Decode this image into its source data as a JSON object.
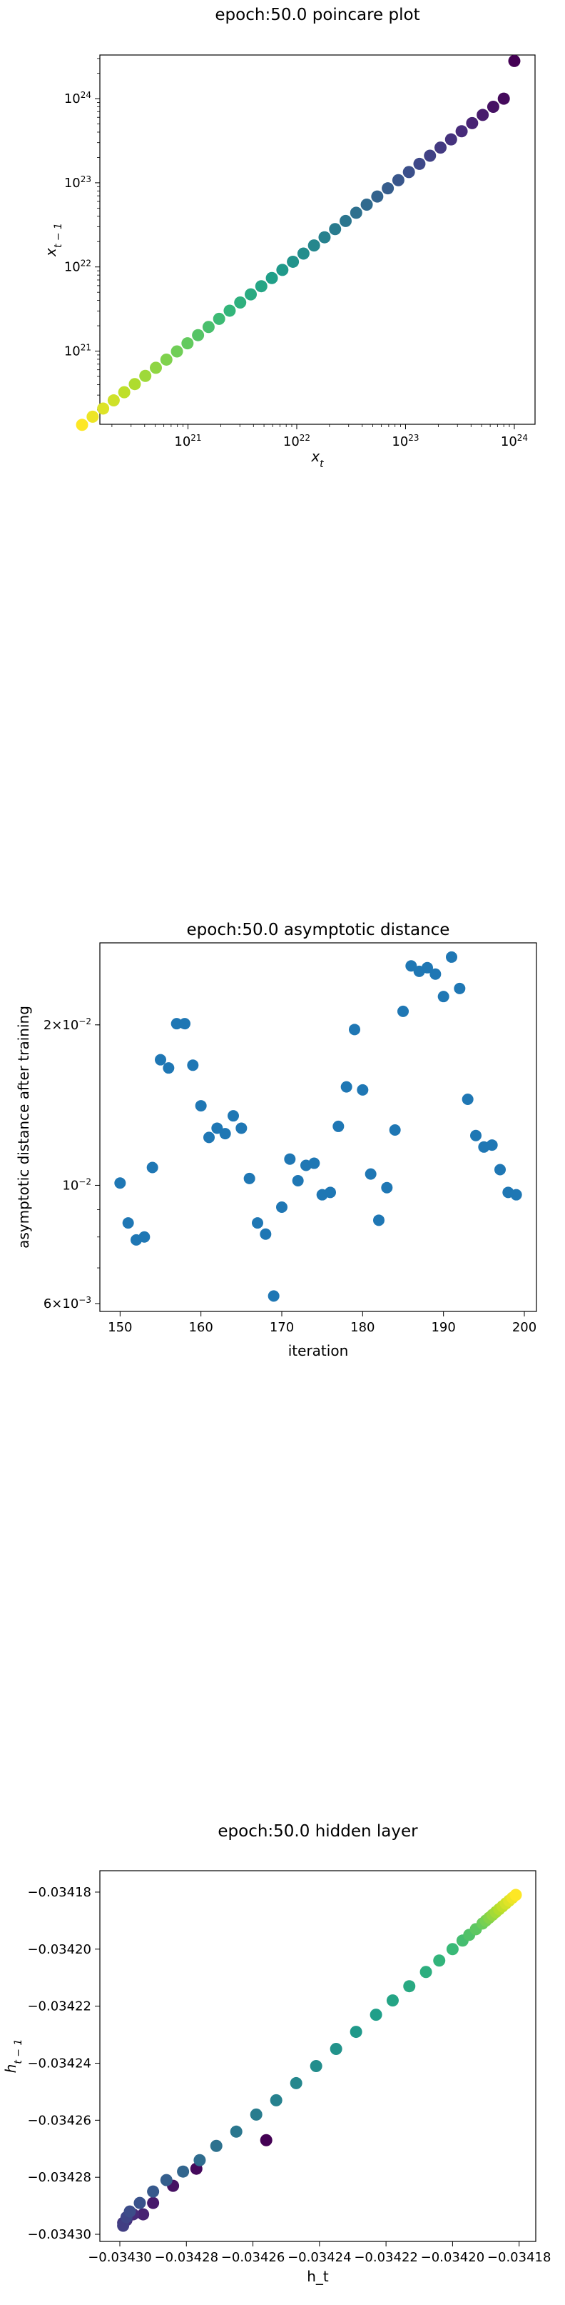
{
  "colors": {
    "axis": "#000000",
    "scatter": "#1f77b4",
    "viridis": [
      "#440154",
      "#482878",
      "#3e4989",
      "#31688e",
      "#26828e",
      "#1f9e89",
      "#35b779",
      "#6ece58",
      "#b5de2b",
      "#fde725"
    ]
  },
  "chart_data": [
    {
      "type": "scatter",
      "title": "epoch:50.0 poincare plot",
      "xlabel": "x_t",
      "ylabel": "x_{t-1}",
      "xscale": "log",
      "yscale": "log",
      "xlim": [
        1.55e+20,
        1.55e+24
      ],
      "ylim": [
        1.35e+20,
        3.3e+24
      ],
      "xticks": [
        {
          "v": 1e+21,
          "e": "21"
        },
        {
          "v": 1e+22,
          "e": "22"
        },
        {
          "v": 1e+23,
          "e": "23"
        },
        {
          "v": 1e+24,
          "e": "24"
        }
      ],
      "yticks": [
        {
          "v": 1e+21,
          "e": "21"
        },
        {
          "v": 1e+22,
          "e": "22"
        },
        {
          "v": 1e+23,
          "e": "23"
        },
        {
          "v": 1e+24,
          "e": "24"
        }
      ],
      "tick_base": "10",
      "colormap": "viridis",
      "grid": false,
      "x_first": 1e+24,
      "ratio": 0.8,
      "n": 42,
      "y_first": 2.8e+24
    },
    {
      "type": "scatter",
      "title": "epoch:50.0 asymptotic distance",
      "xlabel": "iteration",
      "ylabel": "asymptotic distance after training",
      "yscale": "log",
      "xlim": [
        147.5,
        201.5
      ],
      "ylim": [
        0.0058,
        0.0285
      ],
      "xticks": [
        150,
        160,
        170,
        180,
        190,
        200
      ],
      "yticks": [
        {
          "v": 0.006,
          "m": "6",
          "e": "-3"
        },
        {
          "v": 0.01,
          "m": "10",
          "e": "-2"
        },
        {
          "v": 0.02,
          "m": "2",
          "e": "-2"
        }
      ],
      "tick_times": "×",
      "grid": false,
      "x": [
        150,
        151,
        152,
        153,
        154,
        155,
        156,
        157,
        158,
        159,
        160,
        161,
        162,
        163,
        164,
        165,
        166,
        167,
        168,
        169,
        170,
        171,
        172,
        173,
        174,
        175,
        176,
        177,
        178,
        179,
        180,
        181,
        182,
        183,
        184,
        185,
        186,
        187,
        188,
        189,
        190,
        191,
        192,
        193,
        194,
        195,
        196,
        197,
        198,
        199
      ],
      "y": [
        0.0101,
        0.0085,
        0.0079,
        0.008,
        0.0108,
        0.0172,
        0.0166,
        0.0201,
        0.0201,
        0.0168,
        0.0141,
        0.0123,
        0.0128,
        0.0125,
        0.0135,
        0.0128,
        0.0103,
        0.0085,
        0.0081,
        0.0062,
        0.0091,
        0.0112,
        0.0102,
        0.0109,
        0.011,
        0.0096,
        0.0097,
        0.0129,
        0.0153,
        0.0196,
        0.0151,
        0.0105,
        0.0086,
        0.0099,
        0.0127,
        0.0212,
        0.0258,
        0.0252,
        0.0256,
        0.0249,
        0.0226,
        0.0268,
        0.0234,
        0.0145,
        0.0124,
        0.0118,
        0.0119,
        0.0107,
        0.0097,
        0.0096
      ]
    },
    {
      "type": "scatter",
      "title": "epoch:50.0 hidden layer",
      "xlabel": "h_t",
      "ylabel": "h_{t-1}",
      "xlim": [
        -0.034306,
        -0.034175
      ],
      "ylim": [
        -0.0343025,
        -0.0341725
      ],
      "xticks": [
        -0.0343,
        -0.03428,
        -0.03426,
        -0.03424,
        -0.03422,
        -0.0342,
        -0.03418
      ],
      "xtick_labels": [
        "−0.03430",
        "−0.03428",
        "−0.03426",
        "−0.03424",
        "−0.03422",
        "−0.03420",
        "−0.03418"
      ],
      "yticks": [
        -0.0343,
        -0.03428,
        -0.03426,
        -0.03424,
        -0.03422,
        -0.0342,
        -0.03418
      ],
      "ytick_labels": [
        "−0.03430",
        "−0.03428",
        "−0.03426",
        "−0.03424",
        "−0.03422",
        "−0.03420",
        "−0.03418"
      ],
      "colormap": "viridis",
      "grid": false,
      "points": [
        [
          -0.034256,
          -0.034267
        ],
        [
          -0.034277,
          -0.034277
        ],
        [
          -0.034284,
          -0.034283
        ],
        [
          -0.03429,
          -0.034289
        ],
        [
          -0.034293,
          -0.034293
        ],
        [
          -0.034296,
          -0.034293
        ],
        [
          -0.034298,
          -0.034295
        ],
        [
          -0.034299,
          -0.034296
        ],
        [
          -0.034299,
          -0.034297
        ],
        [
          -0.034298,
          -0.034294
        ],
        [
          -0.034297,
          -0.034292
        ],
        [
          -0.034294,
          -0.034289
        ],
        [
          -0.03429,
          -0.034285
        ],
        [
          -0.034286,
          -0.034281
        ],
        [
          -0.034281,
          -0.034278
        ],
        [
          -0.034276,
          -0.034274
        ],
        [
          -0.034271,
          -0.034269
        ],
        [
          -0.034265,
          -0.034264
        ],
        [
          -0.034259,
          -0.034258
        ],
        [
          -0.034253,
          -0.034253
        ],
        [
          -0.034247,
          -0.034247
        ],
        [
          -0.034241,
          -0.034241
        ],
        [
          -0.034235,
          -0.034235
        ],
        [
          -0.034229,
          -0.034229
        ],
        [
          -0.034223,
          -0.034223
        ],
        [
          -0.034218,
          -0.034218
        ],
        [
          -0.034213,
          -0.034213
        ],
        [
          -0.034208,
          -0.034208
        ],
        [
          -0.034204,
          -0.034204
        ],
        [
          -0.0342,
          -0.0342
        ],
        [
          -0.034197,
          -0.034197
        ],
        [
          -0.034195,
          -0.034195
        ],
        [
          -0.034193,
          -0.034193
        ],
        [
          -0.034191,
          -0.034191
        ],
        [
          -0.03419,
          -0.03419
        ],
        [
          -0.034189,
          -0.034189
        ],
        [
          -0.034188,
          -0.034188
        ],
        [
          -0.034187,
          -0.034187
        ],
        [
          -0.034186,
          -0.034186
        ],
        [
          -0.034185,
          -0.034185
        ],
        [
          -0.034184,
          -0.034184
        ],
        [
          -0.034183,
          -0.034183
        ],
        [
          -0.034182,
          -0.034182
        ],
        [
          -0.034181,
          -0.034181
        ]
      ]
    }
  ]
}
